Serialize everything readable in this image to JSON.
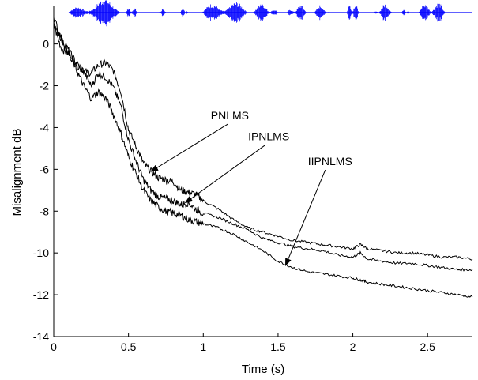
{
  "chart_data": {
    "type": "line",
    "xlabel": "Time (s)",
    "ylabel": "Misalignment dB",
    "xlim": [
      0,
      2.8
    ],
    "ylim": [
      -14,
      1.8
    ],
    "x_ticks": [
      "0",
      "0.5",
      "1",
      "1.5",
      "2",
      "2.5"
    ],
    "x_tick_values": [
      0,
      0.5,
      1,
      1.5,
      2,
      2.5
    ],
    "y_ticks": [
      "0",
      "-2",
      "-4",
      "-6",
      "-8",
      "-10",
      "-12",
      "-14"
    ],
    "y_tick_values": [
      0,
      -2,
      -4,
      -6,
      -8,
      -10,
      -12,
      -14
    ],
    "grid": false,
    "series": [
      {
        "id": "pnlms",
        "x": [
          0,
          0.05,
          0.1,
          0.15,
          0.2,
          0.25,
          0.3,
          0.35,
          0.4,
          0.45,
          0.5,
          0.55,
          0.6,
          0.65,
          0.7,
          0.75,
          0.8,
          0.85,
          0.9,
          0.95,
          1.0,
          1.1,
          1.2,
          1.3,
          1.4,
          1.5,
          1.6,
          1.7,
          1.8,
          1.9,
          2.0,
          2.05,
          2.1,
          2.2,
          2.3,
          2.4,
          2.5,
          2.6,
          2.7,
          2.8
        ],
        "values": [
          0.9,
          -0.2,
          -0.5,
          -1.0,
          -1.3,
          -1.4,
          -1.0,
          -0.9,
          -1.3,
          -2.3,
          -4.1,
          -4.9,
          -5.7,
          -6.1,
          -6.4,
          -6.5,
          -6.6,
          -7.0,
          -7.1,
          -7.2,
          -7.5,
          -7.9,
          -8.4,
          -8.8,
          -9.0,
          -9.2,
          -9.4,
          -9.5,
          -9.6,
          -9.7,
          -9.8,
          -9.6,
          -9.8,
          -9.9,
          -10.0,
          -10.0,
          -10.1,
          -10.2,
          -10.2,
          -10.3
        ]
      },
      {
        "id": "ipnlms",
        "x": [
          0,
          0.05,
          0.1,
          0.15,
          0.2,
          0.25,
          0.3,
          0.35,
          0.4,
          0.45,
          0.5,
          0.55,
          0.6,
          0.65,
          0.7,
          0.75,
          0.8,
          0.85,
          0.9,
          0.95,
          1.0,
          1.1,
          1.2,
          1.3,
          1.4,
          1.5,
          1.6,
          1.7,
          1.8,
          1.9,
          2.0,
          2.05,
          2.1,
          2.2,
          2.3,
          2.4,
          2.5,
          2.6,
          2.7,
          2.8
        ],
        "values": [
          1.3,
          0.2,
          -0.3,
          -0.9,
          -1.3,
          -2.0,
          -1.4,
          -1.6,
          -2.1,
          -3.0,
          -4.6,
          -5.6,
          -6.5,
          -7.0,
          -7.3,
          -7.4,
          -7.5,
          -7.7,
          -7.6,
          -7.9,
          -8.1,
          -8.3,
          -8.6,
          -8.9,
          -9.3,
          -9.5,
          -9.7,
          -9.8,
          -9.9,
          -10.1,
          -10.2,
          -10.0,
          -10.3,
          -10.4,
          -10.5,
          -10.5,
          -10.6,
          -10.7,
          -10.8,
          -10.8
        ]
      },
      {
        "id": "iipnlms",
        "x": [
          0,
          0.05,
          0.1,
          0.15,
          0.2,
          0.25,
          0.3,
          0.35,
          0.4,
          0.45,
          0.5,
          0.55,
          0.6,
          0.65,
          0.7,
          0.75,
          0.8,
          0.85,
          0.9,
          0.95,
          1.0,
          1.1,
          1.2,
          1.3,
          1.4,
          1.5,
          1.6,
          1.7,
          1.8,
          1.9,
          2.0,
          2.05,
          2.1,
          2.2,
          2.3,
          2.4,
          2.5,
          2.6,
          2.7,
          2.8
        ],
        "values": [
          1.0,
          0.3,
          -0.4,
          -1.2,
          -2.0,
          -2.6,
          -2.3,
          -2.6,
          -3.4,
          -4.3,
          -5.4,
          -6.2,
          -7.0,
          -7.5,
          -7.8,
          -8.0,
          -8.1,
          -8.2,
          -8.4,
          -8.5,
          -8.6,
          -8.8,
          -9.1,
          -9.5,
          -9.9,
          -10.4,
          -10.7,
          -10.9,
          -11.0,
          -11.1,
          -11.2,
          -11.3,
          -11.4,
          -11.5,
          -11.6,
          -11.7,
          -11.8,
          -11.9,
          -12.0,
          -12.1
        ]
      }
    ],
    "annotations": [
      {
        "text": "PNLMS",
        "target": [
          0.65,
          -6.1
        ],
        "label_pos": [
          1.05,
          -3.6
        ]
      },
      {
        "text": "IPNLMS",
        "target": [
          0.88,
          -7.6
        ],
        "label_pos": [
          1.3,
          -4.6
        ]
      },
      {
        "text": "IIPNLMS",
        "target": [
          1.55,
          -10.6
        ],
        "label_pos": [
          1.7,
          -5.8
        ]
      }
    ],
    "waveform": {
      "color": "#0000ff",
      "baseline_y": 1.5,
      "segments": [
        {
          "start": 0.1,
          "end": 0.46,
          "amplitude": 1.0
        },
        {
          "start": 0.48,
          "end": 0.56,
          "amplitude": 0.45
        },
        {
          "start": 0.7,
          "end": 0.76,
          "amplitude": 0.3
        },
        {
          "start": 0.84,
          "end": 0.9,
          "amplitude": 0.35
        },
        {
          "start": 0.99,
          "end": 1.3,
          "amplitude": 0.95
        },
        {
          "start": 1.32,
          "end": 1.5,
          "amplitude": 0.7
        },
        {
          "start": 1.56,
          "end": 1.7,
          "amplitude": 0.55
        },
        {
          "start": 1.72,
          "end": 1.85,
          "amplitude": 0.45
        },
        {
          "start": 1.96,
          "end": 2.04,
          "amplitude": 0.9
        },
        {
          "start": 2.14,
          "end": 2.28,
          "amplitude": 0.55
        },
        {
          "start": 2.32,
          "end": 2.38,
          "amplitude": 0.25
        },
        {
          "start": 2.44,
          "end": 2.62,
          "amplitude": 0.9
        }
      ]
    }
  }
}
